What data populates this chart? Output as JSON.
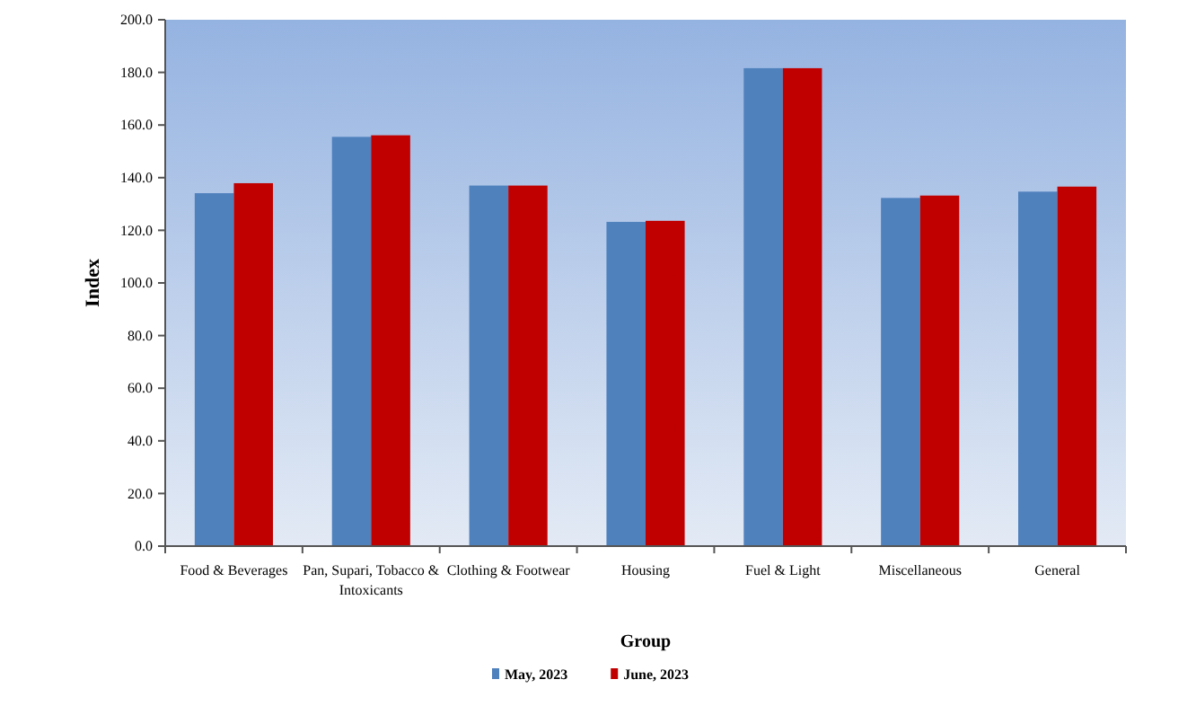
{
  "chart_data": {
    "type": "bar",
    "xlabel": "Group",
    "ylabel": "Index",
    "categories": [
      "Food & Beverages",
      "Pan, Supari, Tobacco & Intoxicants",
      "Clothing & Footwear",
      "Housing",
      "Fuel & Light",
      "Miscellaneous",
      "General"
    ],
    "series": [
      {
        "name": "May, 2023",
        "color": "#4f81bd",
        "values": [
          134.1,
          155.5,
          137.0,
          123.2,
          181.6,
          132.3,
          134.7
        ]
      },
      {
        "name": "June, 2023",
        "color": "#c00000",
        "values": [
          137.9,
          156.1,
          137.0,
          123.6,
          181.6,
          133.2,
          136.6
        ]
      }
    ],
    "ylim": [
      0,
      200
    ],
    "yticks": [
      {
        "value": 0,
        "label": "0.0"
      },
      {
        "value": 20,
        "label": "20.0"
      },
      {
        "value": 40,
        "label": "40.0"
      },
      {
        "value": 60,
        "label": "60.0"
      },
      {
        "value": 80,
        "label": "80.0"
      },
      {
        "value": 100,
        "label": "100.0"
      },
      {
        "value": 120,
        "label": "120.0"
      },
      {
        "value": 140,
        "label": "140.0"
      },
      {
        "value": 160,
        "label": "160.0"
      },
      {
        "value": 180,
        "label": "180.0"
      },
      {
        "value": 200,
        "label": "200.0"
      }
    ],
    "grid": false,
    "legend": "bottom"
  }
}
